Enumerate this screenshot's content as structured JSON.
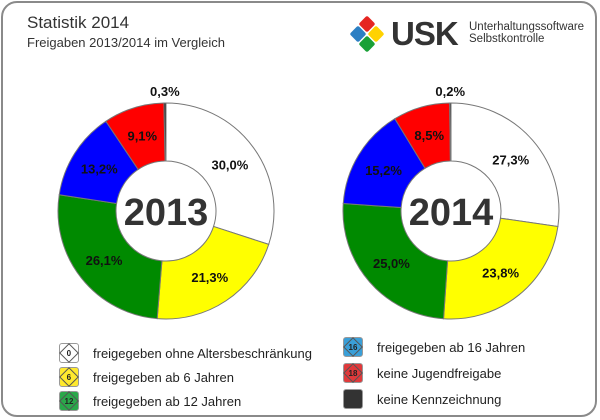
{
  "header": {
    "title": "Statistik 2014",
    "subtitle": "Freigaben 2013/2014 im Vergleich"
  },
  "logo": {
    "text": "USK",
    "line1": "Unterhaltungssoftware",
    "line2": "Selbstkontrolle",
    "colors": [
      "#e52521",
      "#ffd200",
      "#1aa037",
      "#2c7fc3"
    ]
  },
  "chart_data": [
    {
      "type": "pie",
      "center_label": "2013",
      "categories": [
        "freigegeben ohne Altersbeschränkung",
        "freigegeben ab 6 Jahren",
        "freigegeben ab 12 Jahren",
        "freigegeben ab 16 Jahren",
        "keine Jugendfreigabe",
        "keine Kennzeichnung"
      ],
      "values": [
        30.0,
        21.3,
        26.1,
        13.2,
        9.1,
        0.3
      ],
      "labels": [
        "30,0%",
        "21,3%",
        "26,1%",
        "13,2%",
        "9,1%",
        "0,3%"
      ]
    },
    {
      "type": "pie",
      "center_label": "2014",
      "categories": [
        "freigegeben ohne Altersbeschränkung",
        "freigegeben ab 6 Jahren",
        "freigegeben ab 12 Jahren",
        "freigegeben ab 16 Jahren",
        "keine Jugendfreigabe",
        "keine Kennzeichnung"
      ],
      "values": [
        27.3,
        23.8,
        25.0,
        15.2,
        8.5,
        0.2
      ],
      "labels": [
        "27,3%",
        "23,8%",
        "25,0%",
        "15,2%",
        "8,5%",
        "0,2%"
      ]
    }
  ],
  "colors": [
    "#ffffff",
    "#ffff00",
    "#008a00",
    "#0000ff",
    "#ff0000",
    "#222222"
  ],
  "legend": [
    {
      "label": "freigegeben ohne Altersbeschränkung",
      "badge": "0",
      "color": "#ffffff"
    },
    {
      "label": "freigegeben ab 6 Jahren",
      "badge": "6",
      "color": "#ffe92e"
    },
    {
      "label": "freigegeben ab 12 Jahren",
      "badge": "12",
      "color": "#2aa84a"
    },
    {
      "label": "freigegeben ab 16 Jahren",
      "badge": "16",
      "color": "#3a9fd8"
    },
    {
      "label": "keine Jugendfreigabe",
      "badge": "18",
      "color": "#e0393b"
    },
    {
      "label": "keine Kennzeichnung",
      "badge": "",
      "color": "#333333"
    }
  ]
}
